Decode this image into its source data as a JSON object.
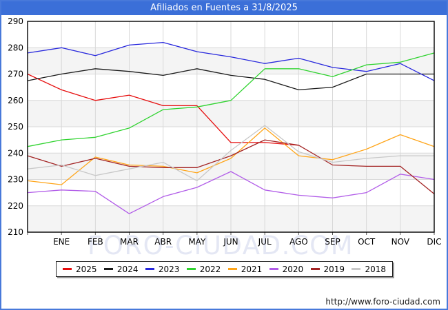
{
  "title": "Afiliados en Fuentes a 31/8/2025",
  "watermark": "FORO-CIUDAD.COM",
  "footer_url": "http://www.foro-ciudad.com",
  "colors": {
    "frame_border": "#4879da",
    "titlebar_bg": "#3b6fd8",
    "titlebar_text": "#ffffff",
    "plot_border": "#000000",
    "grid": "#d8d8d8",
    "band_shade": "#f4f4f4",
    "axis_text": "#000000",
    "watermark": "#e4e7f4",
    "url_text": "#1a1a1a"
  },
  "chart_data": {
    "type": "line",
    "title": "Afiliados en Fuentes a 31/8/2025",
    "x_categories": [
      "ENE",
      "FEB",
      "MAR",
      "ABR",
      "MAY",
      "JUN",
      "JUL",
      "AGO",
      "SEP",
      "OCT",
      "NOV",
      "DIC"
    ],
    "y_axis": {
      "min": 210,
      "max": 290,
      "step": 10,
      "tick_labels": [
        "290",
        "280",
        "270",
        "260",
        "250",
        "240",
        "230",
        "220",
        "210"
      ]
    },
    "grid": true,
    "legend_position": "bottom",
    "series_note": "prev_dec is the value plotted at the left plot edge (December of previous year); values are ENE..DIC",
    "series": [
      {
        "name": "2025",
        "color": "#e60d0d",
        "prev_dec": 270,
        "values": [
          264,
          260,
          262,
          258,
          258,
          244,
          244,
          243
        ]
      },
      {
        "name": "2024",
        "color": "#1a1a1a",
        "prev_dec": 267.5,
        "values": [
          270,
          272,
          271,
          269.5,
          272,
          269.5,
          268,
          264,
          265,
          270,
          270,
          270
        ]
      },
      {
        "name": "2023",
        "color": "#2727dd",
        "prev_dec": 278,
        "values": [
          280,
          277,
          281,
          282,
          278.5,
          276.5,
          274,
          276,
          272.5,
          271,
          274,
          267.5
        ]
      },
      {
        "name": "2022",
        "color": "#2fd32f",
        "prev_dec": 242.5,
        "values": [
          245,
          246,
          249.5,
          256.5,
          257.5,
          260,
          272,
          272,
          269,
          273.5,
          274.5,
          278
        ]
      },
      {
        "name": "2021",
        "color": "#ffa519",
        "prev_dec": 229.5,
        "values": [
          228,
          238.5,
          235.5,
          235,
          232.5,
          238,
          249.5,
          239,
          237.5,
          241.5,
          247,
          242.5
        ]
      },
      {
        "name": "2020",
        "color": "#b15ce8",
        "prev_dec": 225,
        "values": [
          226,
          225.5,
          217,
          223.5,
          227,
          233,
          226,
          224,
          223,
          225,
          232,
          230
        ]
      },
      {
        "name": "2019",
        "color": "#a32424",
        "prev_dec": 239,
        "values": [
          235,
          238,
          235,
          234.5,
          234.5,
          239,
          245,
          243,
          235.5,
          235,
          235,
          224.5
        ]
      },
      {
        "name": "2018",
        "color": "#c8c8c8",
        "prev_dec": 234,
        "values": [
          235.5,
          231.5,
          234,
          236.5,
          229.5,
          241,
          250.5,
          240.5,
          236.5,
          238,
          239,
          239
        ]
      }
    ]
  }
}
